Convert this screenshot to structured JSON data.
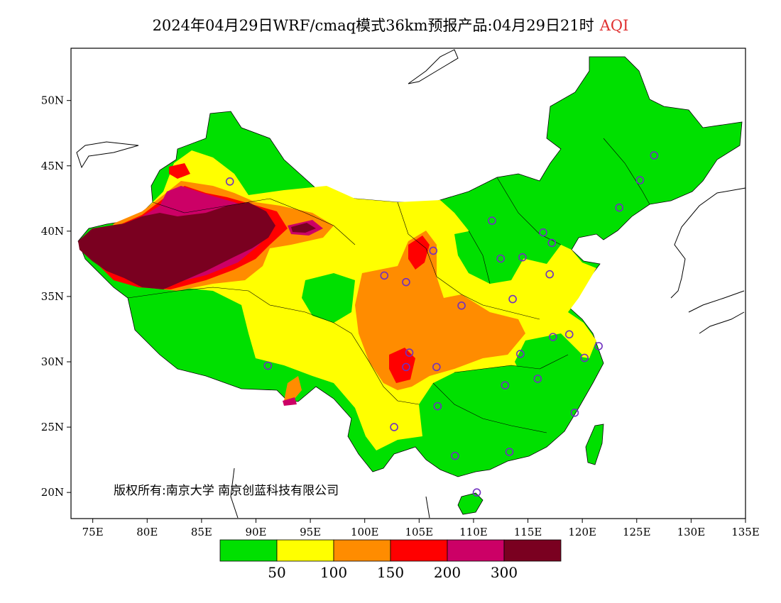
{
  "title": {
    "main": "2024年04月29日WRF/cmaq模式36km预报产品:04月29日21时",
    "product": "AQI"
  },
  "axes": {
    "lon_range": [
      73,
      135
    ],
    "lat_range": [
      18,
      54
    ],
    "lon_ticks": [
      "75E",
      "80E",
      "85E",
      "90E",
      "95E",
      "100E",
      "105E",
      "110E",
      "115E",
      "120E",
      "125E",
      "130E",
      "135E"
    ],
    "lat_ticks": [
      "20N",
      "25N",
      "30N",
      "35N",
      "40N",
      "45N",
      "50N"
    ]
  },
  "copyright": "版权所有:南京大学  南京创蓝科技有限公司",
  "legend": {
    "colors": [
      "#00e000",
      "#ffff00",
      "#ff8c00",
      "#ff0000",
      "#cc0066",
      "#7a0020"
    ],
    "labels": [
      "50",
      "100",
      "150",
      "200",
      "300"
    ]
  },
  "stations": [
    [
      87.6,
      43.8
    ],
    [
      91.1,
      29.7
    ],
    [
      101.8,
      36.6
    ],
    [
      103.8,
      36.1
    ],
    [
      106.3,
      38.5
    ],
    [
      104.1,
      30.7
    ],
    [
      103.8,
      29.6
    ],
    [
      106.6,
      29.6
    ],
    [
      106.7,
      26.6
    ],
    [
      102.7,
      25.0
    ],
    [
      108.3,
      22.8
    ],
    [
      110.3,
      20.0
    ],
    [
      113.3,
      23.1
    ],
    [
      112.9,
      28.2
    ],
    [
      114.3,
      30.6
    ],
    [
      115.9,
      28.7
    ],
    [
      117.3,
      31.9
    ],
    [
      118.8,
      32.1
    ],
    [
      120.2,
      30.3
    ],
    [
      121.5,
      31.2
    ],
    [
      119.3,
      26.1
    ],
    [
      113.6,
      34.8
    ],
    [
      108.9,
      34.3
    ],
    [
      112.5,
      37.9
    ],
    [
      114.5,
      38.0
    ],
    [
      116.4,
      39.9
    ],
    [
      117.2,
      39.1
    ],
    [
      111.7,
      40.8
    ],
    [
      123.4,
      41.8
    ],
    [
      125.3,
      43.9
    ],
    [
      126.6,
      45.8
    ],
    [
      117.0,
      36.7
    ]
  ]
}
